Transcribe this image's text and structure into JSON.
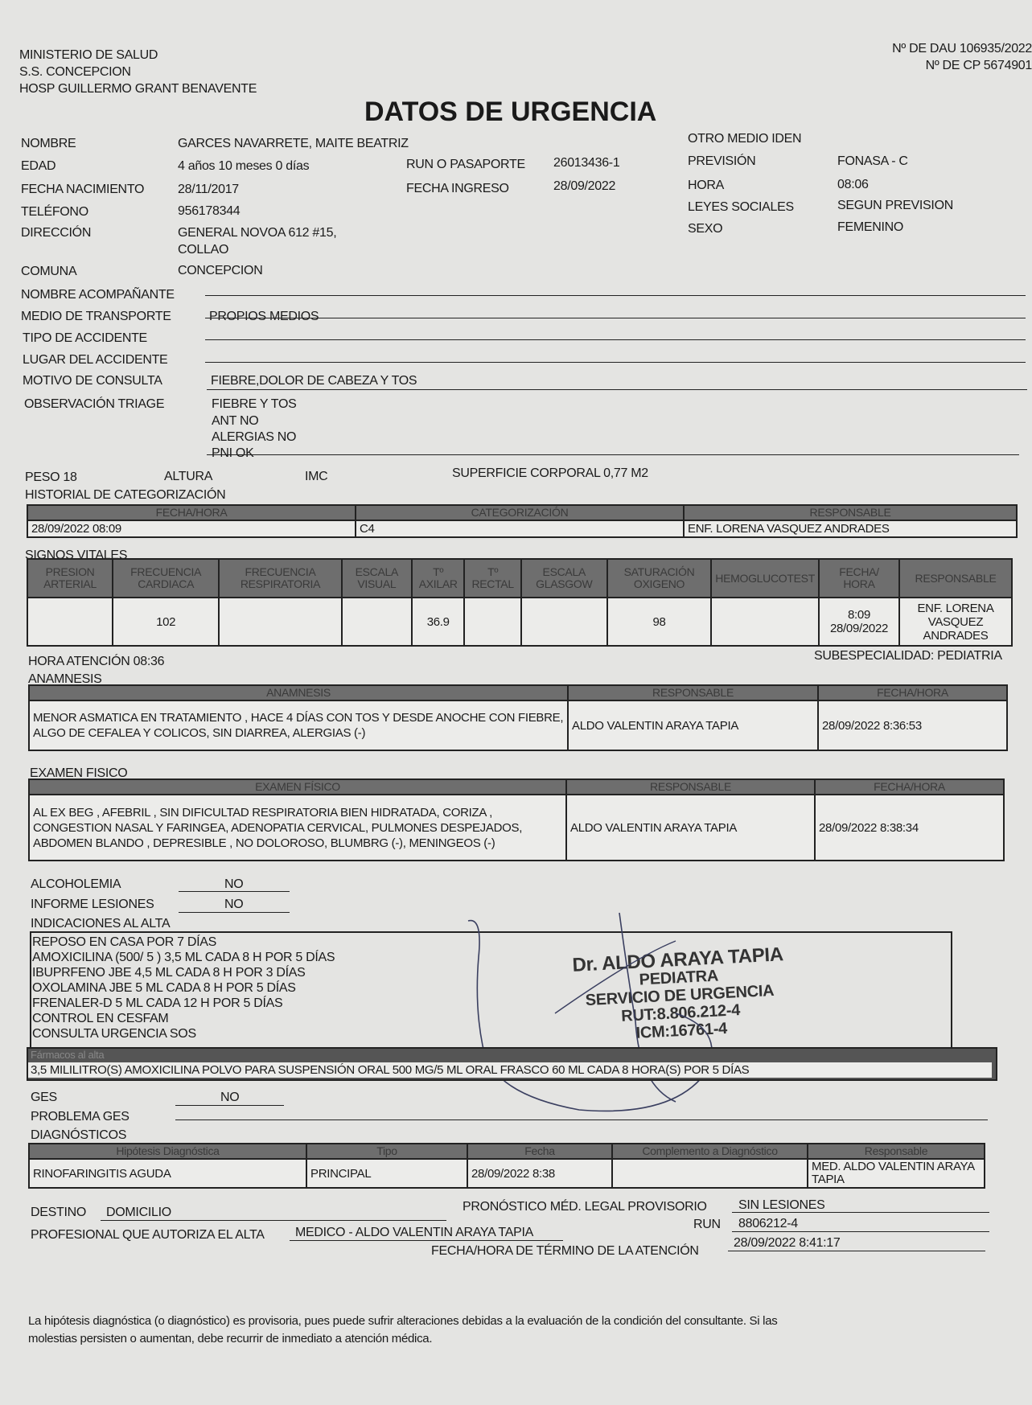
{
  "header": {
    "org1": "MINISTERIO DE SALUD",
    "org2": "S.S. CONCEPCION",
    "org3": "HOSP GUILLERMO GRANT BENAVENTE",
    "dau": "Nº DE DAU 106935/2022",
    "cp": "Nº DE CP 5674901",
    "title": "DATOS DE URGENCIA"
  },
  "patient": {
    "nombre_label": "NOMBRE",
    "nombre": "GARCES NAVARRETE, MAITE BEATRIZ",
    "edad_label": "EDAD",
    "edad": "4 años 10 meses 0 días",
    "run_label": "RUN O PASAPORTE",
    "run": "26013436-1",
    "fnac_label": "FECHA NACIMIENTO",
    "fnac": "28/11/2017",
    "fingreso_label": "FECHA INGRESO",
    "fingreso": "28/09/2022",
    "tel_label": "TELÉFONO",
    "tel": "956178344",
    "dir_label": "DIRECCIÓN",
    "dir1": "GENERAL NOVOA  612 #15,",
    "dir2": "COLLAO",
    "comuna_label": "COMUNA",
    "comuna": "CONCEPCION",
    "otro_label": "OTRO MEDIO IDEN",
    "prevision_label": "PREVISIÓN",
    "prevision": "FONASA - C",
    "hora_label": "HORA",
    "hora": "08:06",
    "leyes_label": "LEYES SOCIALES",
    "leyes": "SEGUN PREVISION",
    "sexo_label": "SEXO",
    "sexo": "FEMENINO"
  },
  "fields": {
    "acomp_label": "NOMBRE ACOMPAÑANTE",
    "acomp": "",
    "transporte_label": "MEDIO DE TRANSPORTE",
    "transporte": "PROPIOS MEDIOS",
    "tipo_label": "TIPO DE ACCIDENTE",
    "lugar_label": "LUGAR DEL ACCIDENTE",
    "motivo_label": "MOTIVO DE CONSULTA",
    "motivo": "FIEBRE,DOLOR DE CABEZA Y TOS",
    "obs_label": "OBSERVACIÓN TRIAGE",
    "obs": [
      "FIEBRE Y TOS",
      "ANT NO",
      "ALERGIAS NO",
      "PNI OK"
    ],
    "peso": "PESO 18",
    "altura": "ALTURA",
    "imc": "IMC",
    "superficie": "SUPERFICIE CORPORAL 0,77 M2"
  },
  "categorizacion": {
    "title": "HISTORIAL DE CATEGORIZACIÓN",
    "headers": [
      "FECHA/HORA",
      "CATEGORIZACIÓN",
      "RESPONSABLE"
    ],
    "row": [
      "28/09/2022 08:09",
      "C4",
      "ENF. LORENA VASQUEZ ANDRADES"
    ]
  },
  "signos": {
    "title": "SIGNOS VITALES",
    "headers": [
      "PRESION ARTERIAL",
      "FRECUENCIA CARDIACA",
      "FRECUENCIA RESPIRATORIA",
      "ESCALA VISUAL",
      "Tº AXILAR",
      "Tº RECTAL",
      "ESCALA GLASGOW",
      "SATURACIÓN OXIGENO",
      "HEMOGLUCOTEST",
      "FECHA/ HORA",
      "RESPONSABLE"
    ],
    "row": [
      "",
      "102",
      "",
      "",
      "36.9",
      "",
      "",
      "98",
      "",
      "8:09 28/09/2022",
      "ENF. LORENA VASQUEZ ANDRADES"
    ]
  },
  "atencion": {
    "hora": "HORA ATENCIÓN 08:36",
    "subesp": "SUBESPECIALIDAD: PEDIATRIA"
  },
  "anamnesis": {
    "title": "ANAMNESIS",
    "headers": [
      "ANAMNESIS",
      "RESPONSABLE",
      "FECHA/HORA"
    ],
    "row": [
      "MENOR ASMATICA EN TRATAMIENTO , HACE 4 DÍAS CON TOS Y DESDE ANOCHE CON FIEBRE, ALGO DE CEFALEA Y COLICOS, SIN DIARREA, ALERGIAS (-)",
      "ALDO VALENTIN ARAYA TAPIA",
      "28/09/2022 8:36:53"
    ]
  },
  "examen": {
    "title": "EXAMEN FISICO",
    "headers": [
      "EXAMEN FÍSICO",
      "RESPONSABLE",
      "FECHA/HORA"
    ],
    "row": [
      "AL EX BEG , AFEBRIL , SIN DIFICULTAD RESPIRATORIA BIEN HIDRATADA, CORIZA , CONGESTION NASAL Y FARINGEA, ADENOPATIA CERVICAL, PULMONES DESPEJADOS, ABDOMEN BLANDO , DEPRESIBLE , NO DOLOROSO, BLUMBRG (-), MENINGEOS (-)",
      "ALDO VALENTIN ARAYA TAPIA",
      "28/09/2022 8:38:34"
    ]
  },
  "alcoholemia_label": "ALCOHOLEMIA",
  "alcoholemia": "NO",
  "informe_label": "INFORME LESIONES",
  "informe": "NO",
  "indicaciones": {
    "title": "INDICACIONES AL ALTA",
    "items": [
      "REPOSO EN CASA POR 7 DÍAS",
      "AMOXICILINA (500/ 5 )  3,5 ML CADA 8 H POR 5 DÍAS",
      "IBUPRFENO JBE  4,5 ML CADA 8 H POR 3 DÍAS",
      "OXOLAMINA JBE 5 ML CADA 8 H POR 5 DÍAS",
      "FRENALER-D  5 ML CADA 12 H POR 5 DÍAS",
      "CONTROL EN CESFAM",
      "CONSULTA URGENCIA SOS"
    ],
    "farmacos_label": "Fármacos al alta",
    "farmacos": "3,5 MILILITRO(S) AMOXICILINA POLVO PARA SUSPENSIÓN ORAL 500 MG/5 ML ORAL FRASCO 60 ML CADA 8 HORA(S) POR 5 DÍAS"
  },
  "stamp": [
    "Dr. ALDO ARAYA TAPIA",
    "PEDIATRA",
    "SERVICIO DE URGENCIA",
    "RUT:8.806.212-4",
    "ICM:16761-4"
  ],
  "ges_label": "GES",
  "ges": "NO",
  "problema_ges_label": "PROBLEMA GES",
  "diagnosticos": {
    "title": "DIAGNÓSTICOS",
    "headers": [
      "Hipótesis Diagnóstica",
      "Tipo",
      "Fecha",
      "Complemento a Diagnóstico",
      "Responsable"
    ],
    "row": [
      "RINOFARINGITIS AGUDA",
      "PRINCIPAL",
      "28/09/2022 8:38",
      "",
      "MED. ALDO VALENTIN ARAYA TAPIA"
    ]
  },
  "cierre": {
    "destino_label": "DESTINO",
    "destino": "DOMICILIO",
    "pronostico_label": "PRONÓSTICO MÉD. LEGAL PROVISORIO",
    "pronostico": "SIN LESIONES",
    "profesional_label": "PROFESIONAL QUE AUTORIZA EL ALTA",
    "profesional": "MEDICO - ALDO VALENTIN ARAYA TAPIA",
    "run_label": "RUN",
    "run": "8806212-4",
    "termino_label": "FECHA/HORA DE TÉRMINO DE LA ATENCIÓN",
    "termino": "28/09/2022 8:41:17"
  },
  "footer": {
    "line1": "La hipótesis diagnóstica (o diagnóstico) es provisoria, pues puede sufrir alteraciones debidas a la evaluación de la condición del consultante. Si las",
    "line2": "molestias persisten o aumentan, debe recurrir de inmediato a atención médica."
  }
}
